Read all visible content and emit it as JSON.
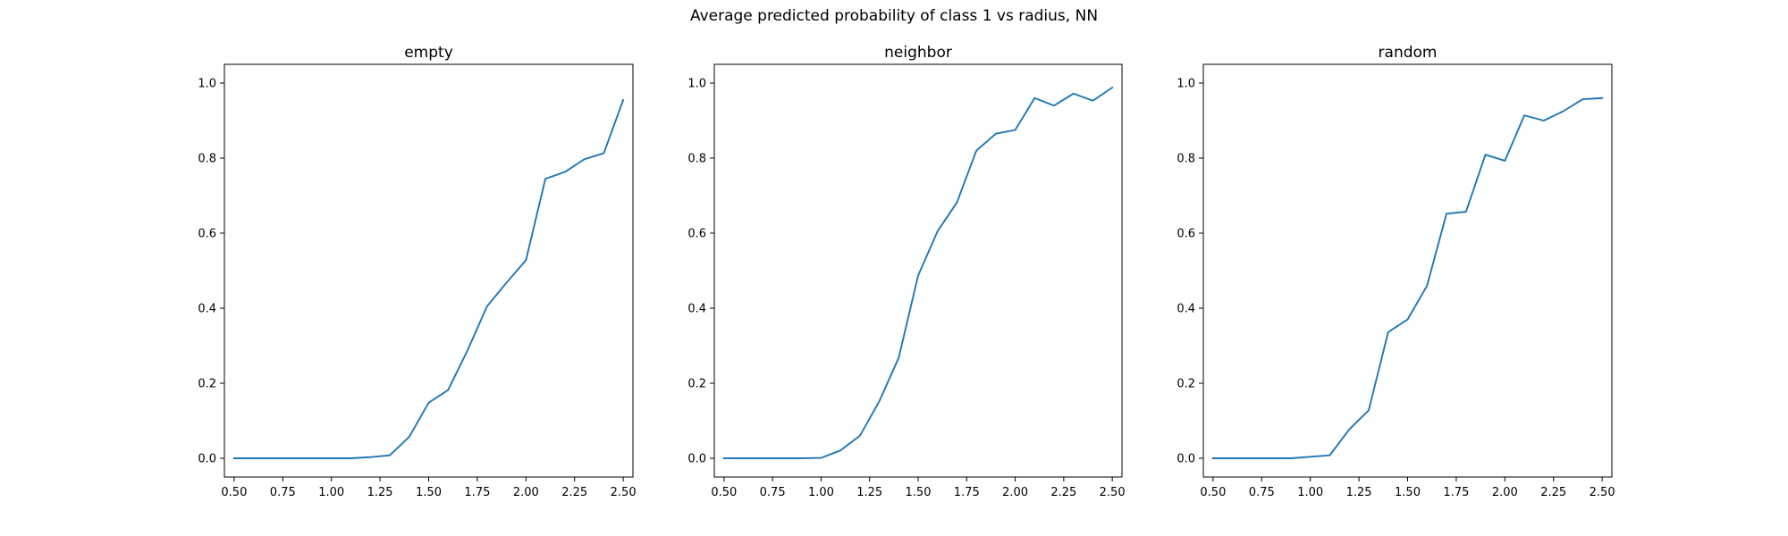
{
  "figure": {
    "suptitle": "Average predicted probability of class 1 vs radius, NN"
  },
  "chart_data": [
    {
      "type": "line",
      "title": "empty",
      "xlabel": "",
      "ylabel": "",
      "xlim": [
        0.45,
        2.55
      ],
      "ylim": [
        -0.05,
        1.05
      ],
      "xticks": [
        "0.50",
        "0.75",
        "1.00",
        "1.25",
        "1.50",
        "1.75",
        "2.00",
        "2.25",
        "2.50"
      ],
      "yticks": [
        "0.0",
        "0.2",
        "0.4",
        "0.6",
        "0.8",
        "1.0"
      ],
      "grid": false,
      "color": "#1f77b4",
      "x": [
        0.5,
        0.6,
        0.7,
        0.8,
        0.9,
        1.0,
        1.1,
        1.2,
        1.3,
        1.4,
        1.5,
        1.6,
        1.7,
        1.8,
        1.9,
        2.0,
        2.1,
        2.2,
        2.3,
        2.4,
        2.5
      ],
      "y": [
        0.0,
        0.0,
        0.0,
        0.0,
        0.0,
        0.0,
        0.0,
        0.003,
        0.008,
        0.057,
        0.148,
        0.182,
        0.288,
        0.405,
        0.468,
        0.528,
        0.745,
        0.763,
        0.797,
        0.813,
        0.955
      ]
    },
    {
      "type": "line",
      "title": "neighbor",
      "xlabel": "",
      "ylabel": "",
      "xlim": [
        0.45,
        2.55
      ],
      "ylim": [
        -0.05,
        1.05
      ],
      "xticks": [
        "0.50",
        "0.75",
        "1.00",
        "1.25",
        "1.50",
        "1.75",
        "2.00",
        "2.25",
        "2.50"
      ],
      "yticks": [
        "0.0",
        "0.2",
        "0.4",
        "0.6",
        "0.8",
        "1.0"
      ],
      "grid": false,
      "color": "#1f77b4",
      "x": [
        0.5,
        0.6,
        0.7,
        0.8,
        0.9,
        1.0,
        1.1,
        1.2,
        1.3,
        1.4,
        1.5,
        1.6,
        1.7,
        1.8,
        1.9,
        2.0,
        2.1,
        2.2,
        2.3,
        2.4,
        2.5
      ],
      "y": [
        0.0,
        0.0,
        0.0,
        0.0,
        0.0,
        0.001,
        0.021,
        0.06,
        0.152,
        0.268,
        0.487,
        0.605,
        0.682,
        0.82,
        0.865,
        0.875,
        0.96,
        0.94,
        0.972,
        0.953,
        0.988
      ]
    },
    {
      "type": "line",
      "title": "random",
      "xlabel": "",
      "ylabel": "",
      "xlim": [
        0.45,
        2.55
      ],
      "ylim": [
        -0.05,
        1.05
      ],
      "xticks": [
        "0.50",
        "0.75",
        "1.00",
        "1.25",
        "1.50",
        "1.75",
        "2.00",
        "2.25",
        "2.50"
      ],
      "yticks": [
        "0.0",
        "0.2",
        "0.4",
        "0.6",
        "0.8",
        "1.0"
      ],
      "grid": false,
      "color": "#1f77b4",
      "x": [
        0.5,
        0.6,
        0.7,
        0.8,
        0.9,
        1.0,
        1.1,
        1.2,
        1.3,
        1.4,
        1.5,
        1.6,
        1.7,
        1.8,
        1.9,
        2.0,
        2.1,
        2.2,
        2.3,
        2.4,
        2.5
      ],
      "y": [
        0.0,
        0.0,
        0.0,
        0.0,
        0.0,
        0.004,
        0.008,
        0.077,
        0.128,
        0.336,
        0.37,
        0.46,
        0.652,
        0.657,
        0.809,
        0.793,
        0.914,
        0.9,
        0.925,
        0.957,
        0.96
      ]
    }
  ]
}
